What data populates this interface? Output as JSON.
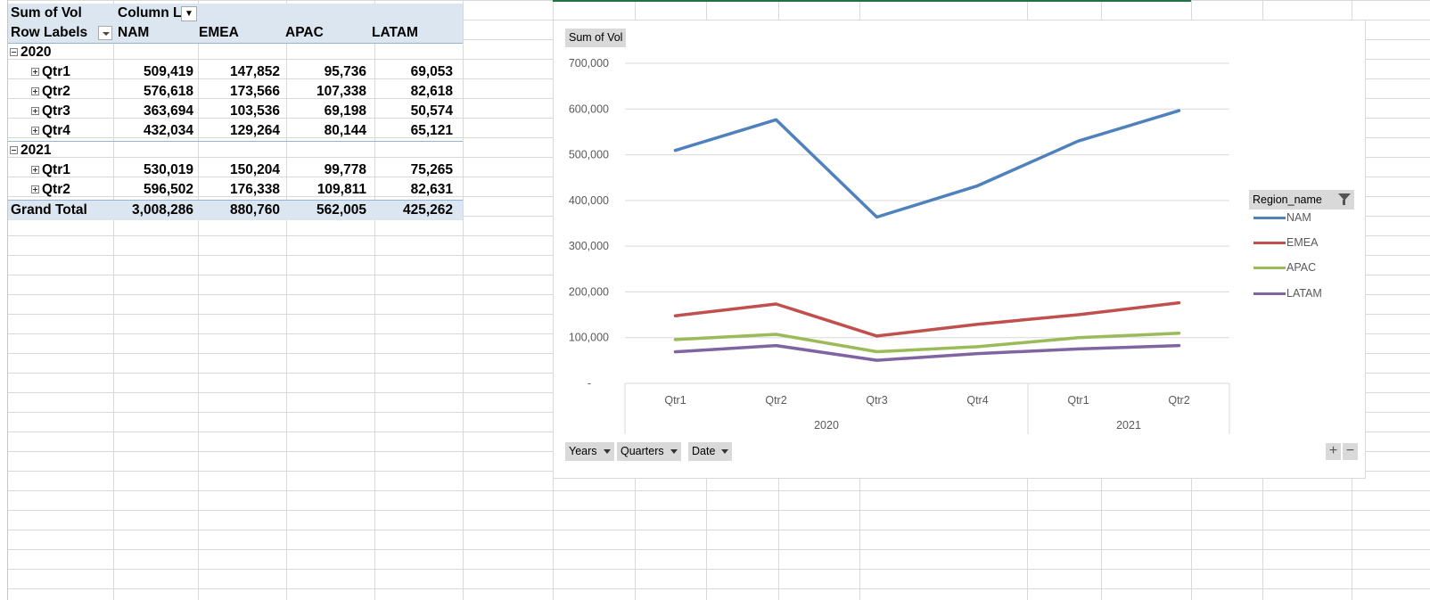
{
  "pivot": {
    "header1": {
      "sum_label": "Sum of Vol",
      "col_label": "Column L"
    },
    "header2": {
      "row_labels": "Row Labels",
      "columns": [
        "NAM",
        "EMEA",
        "APAC",
        "LATAM"
      ]
    },
    "groups": [
      {
        "year": "2020",
        "rows": [
          {
            "label": "Qtr1",
            "values": [
              "509,419",
              "147,852",
              "95,736",
              "69,053"
            ]
          },
          {
            "label": "Qtr2",
            "values": [
              "576,618",
              "173,566",
              "107,338",
              "82,618"
            ]
          },
          {
            "label": "Qtr3",
            "values": [
              "363,694",
              "103,536",
              "69,198",
              "50,574"
            ]
          },
          {
            "label": "Qtr4",
            "values": [
              "432,034",
              "129,264",
              "80,144",
              "65,121"
            ]
          }
        ]
      },
      {
        "year": "2021",
        "rows": [
          {
            "label": "Qtr1",
            "values": [
              "530,019",
              "150,204",
              "99,778",
              "75,265"
            ]
          },
          {
            "label": "Qtr2",
            "values": [
              "596,502",
              "176,338",
              "109,811",
              "82,631"
            ]
          }
        ]
      }
    ],
    "grand_total": {
      "label": "Grand Total",
      "values": [
        "3,008,286",
        "880,760",
        "562,005",
        "425,262"
      ]
    }
  },
  "chart_panel": {
    "value_chip": "Sum of Vol",
    "axis_chips": [
      "Years",
      "Quarters",
      "Date"
    ],
    "legend_title": "Region_name",
    "plus": "+",
    "minus": "−"
  },
  "chart_data": {
    "type": "line",
    "categories": [
      "Qtr1",
      "Qtr2",
      "Qtr3",
      "Qtr4",
      "Qtr1",
      "Qtr2"
    ],
    "category_groups": [
      {
        "label": "2020",
        "span": 4
      },
      {
        "label": "2021",
        "span": 2
      }
    ],
    "series": [
      {
        "name": "NAM",
        "color": "#4f81bd",
        "values": [
          509419,
          576618,
          363694,
          432034,
          530019,
          596502
        ]
      },
      {
        "name": "EMEA",
        "color": "#c0504d",
        "values": [
          147852,
          173566,
          103536,
          129264,
          150204,
          176338
        ]
      },
      {
        "name": "APAC",
        "color": "#9bbb59",
        "values": [
          95736,
          107338,
          69198,
          80144,
          99778,
          109811
        ]
      },
      {
        "name": "LATAM",
        "color": "#8064a2",
        "values": [
          69053,
          82618,
          50574,
          65121,
          75265,
          82631
        ]
      }
    ],
    "yticks": [
      "-",
      "100,000",
      "200,000",
      "300,000",
      "400,000",
      "500,000",
      "600,000",
      "700,000"
    ],
    "ylim": [
      0,
      700000
    ],
    "grid": true,
    "legend_position": "right"
  }
}
